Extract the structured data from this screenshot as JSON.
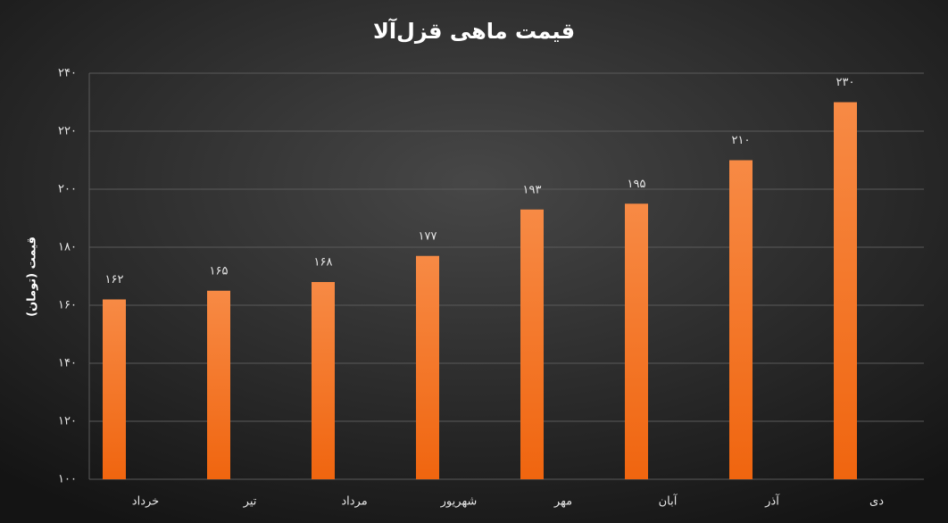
{
  "chart_data": {
    "type": "bar",
    "title": "قیمت ماهی قزل‌آلا",
    "y_label": "قیمت (تومان)",
    "categories": [
      "خرداد",
      "تیر",
      "مرداد",
      "شهریور",
      "مهر",
      "آبان",
      "آذر",
      "دی"
    ],
    "values": [
      162,
      165,
      168,
      177,
      193,
      195,
      210,
      230
    ],
    "value_labels": [
      "۱۶۲",
      "۱۶۵",
      "۱۶۸",
      "۱۷۷",
      "۱۹۳",
      "۱۹۵",
      "۲۱۰",
      "۲۳۰"
    ],
    "color": "#f5782a",
    "ylim": [
      100,
      240
    ],
    "yticks": [
      {
        "value": 100,
        "label": "۱۰۰"
      },
      {
        "value": 120,
        "label": "۱۲۰"
      },
      {
        "value": 140,
        "label": "۱۴۰"
      },
      {
        "value": 160,
        "label": "۱۶۰"
      },
      {
        "value": 180,
        "label": "۱۸۰"
      },
      {
        "value": 200,
        "label": "۲۰۰"
      },
      {
        "value": 220,
        "label": "۲۲۰"
      },
      {
        "value": 240,
        "label": "۲۴۰"
      }
    ],
    "grid": true
  }
}
